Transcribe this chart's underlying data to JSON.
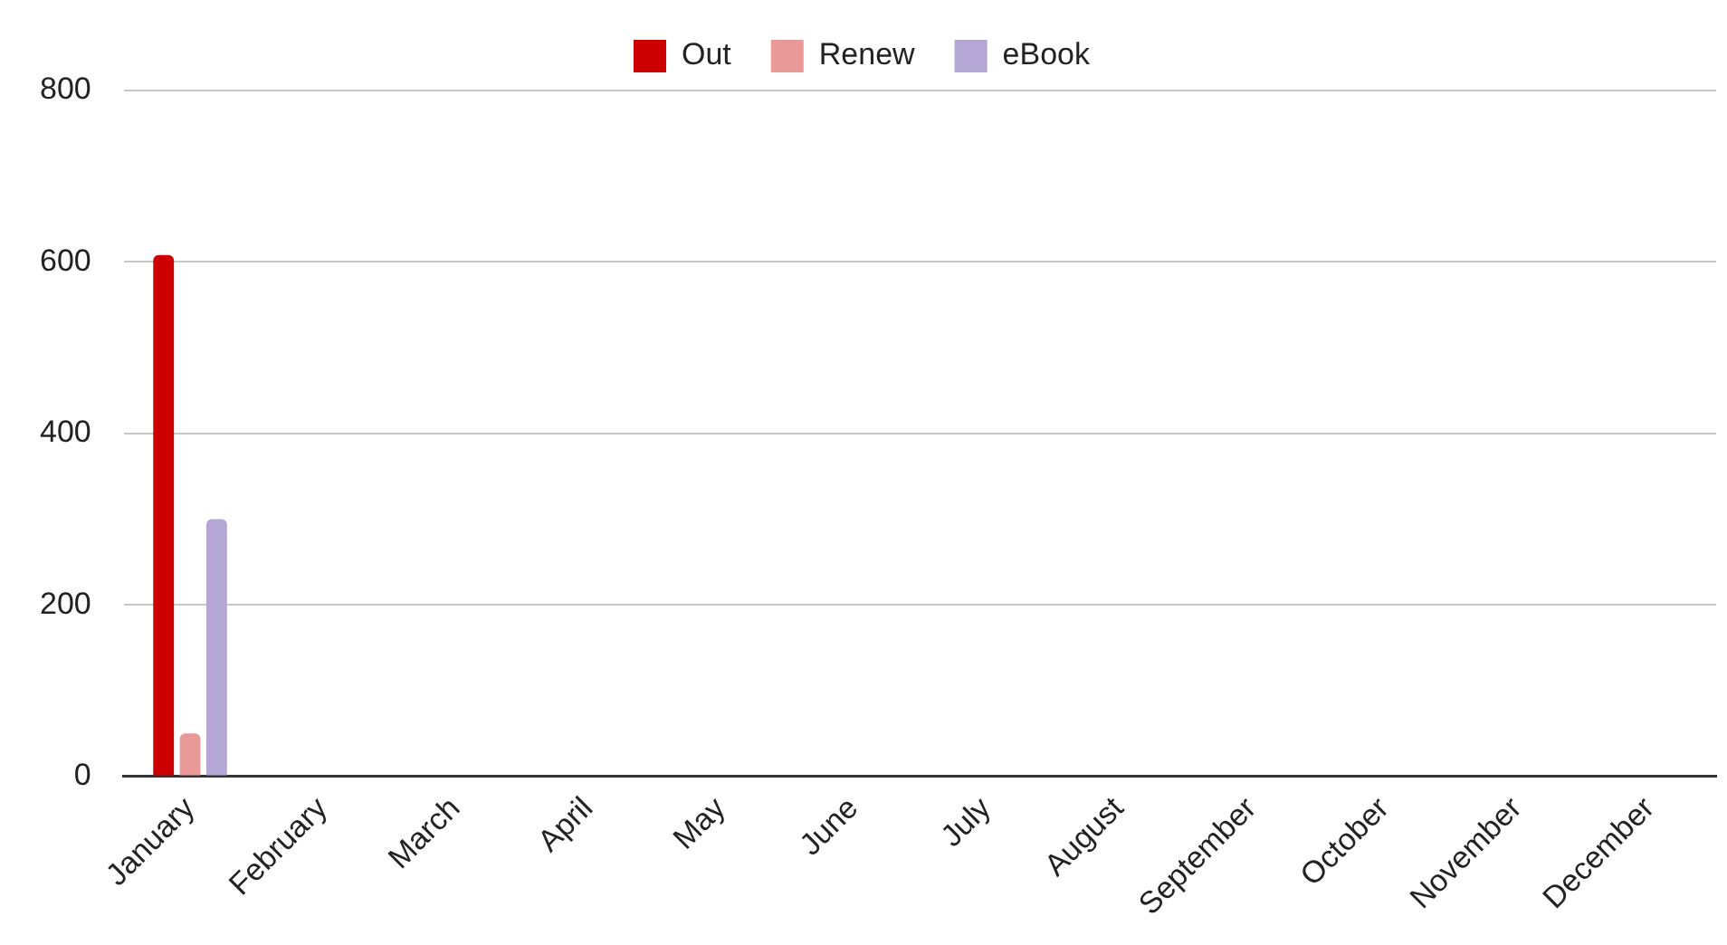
{
  "chart_data": {
    "type": "bar",
    "categories": [
      "January",
      "February",
      "March",
      "April",
      "May",
      "June",
      "July",
      "August",
      "September",
      "October",
      "November",
      "December"
    ],
    "series": [
      {
        "name": "Out",
        "color": "#cc0000",
        "values": [
          608,
          null,
          null,
          null,
          null,
          null,
          null,
          null,
          null,
          null,
          null,
          null
        ]
      },
      {
        "name": "Renew",
        "color": "#ea9999",
        "values": [
          50,
          null,
          null,
          null,
          null,
          null,
          null,
          null,
          null,
          null,
          null,
          null
        ]
      },
      {
        "name": "eBook",
        "color": "#b4a7d6",
        "values": [
          300,
          null,
          null,
          null,
          null,
          null,
          null,
          null,
          null,
          null,
          null,
          null
        ]
      }
    ],
    "ylim": [
      0,
      800
    ],
    "yticks": [
      0,
      200,
      400,
      600,
      800
    ],
    "grid": "y",
    "legend": "top"
  }
}
